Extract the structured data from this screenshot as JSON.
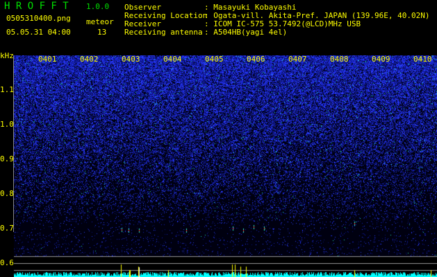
{
  "app": {
    "title": "H R O F F T",
    "version": "1.0.0"
  },
  "file": {
    "name": "0505310400.png",
    "datetime": "05.05.31 04:00"
  },
  "meteor": {
    "label": "meteor",
    "count": "13"
  },
  "info": [
    {
      "label": "Observer",
      "value": ": Masayuki Kobayashi"
    },
    {
      "label": "Receiving Location",
      "value": ": Ogata-vill. Akita-Pref. JAPAN (139.96E, 40.02N)"
    },
    {
      "label": "Receiver",
      "value": ": ICOM IC-575 53.7492(@LCD)MHz USB"
    },
    {
      "label": "Receiving antenna",
      "value": ": A504HB(yagi 4el)"
    }
  ],
  "axis": {
    "unit": "kHz",
    "y_ticks": [
      "1.1",
      "1.0",
      "0.9",
      "0.8",
      "0.7",
      "0.6"
    ],
    "time_ticks": [
      "0401",
      "0402",
      "0403",
      "0404",
      "0405",
      "0406",
      "0407",
      "0408",
      "0409",
      "0410"
    ]
  },
  "colors": {
    "text": "#ffff00",
    "title": "#00e000",
    "noise": "#1a2cff",
    "level": "#00ffff",
    "meteor_bar": "#ffff00"
  }
}
